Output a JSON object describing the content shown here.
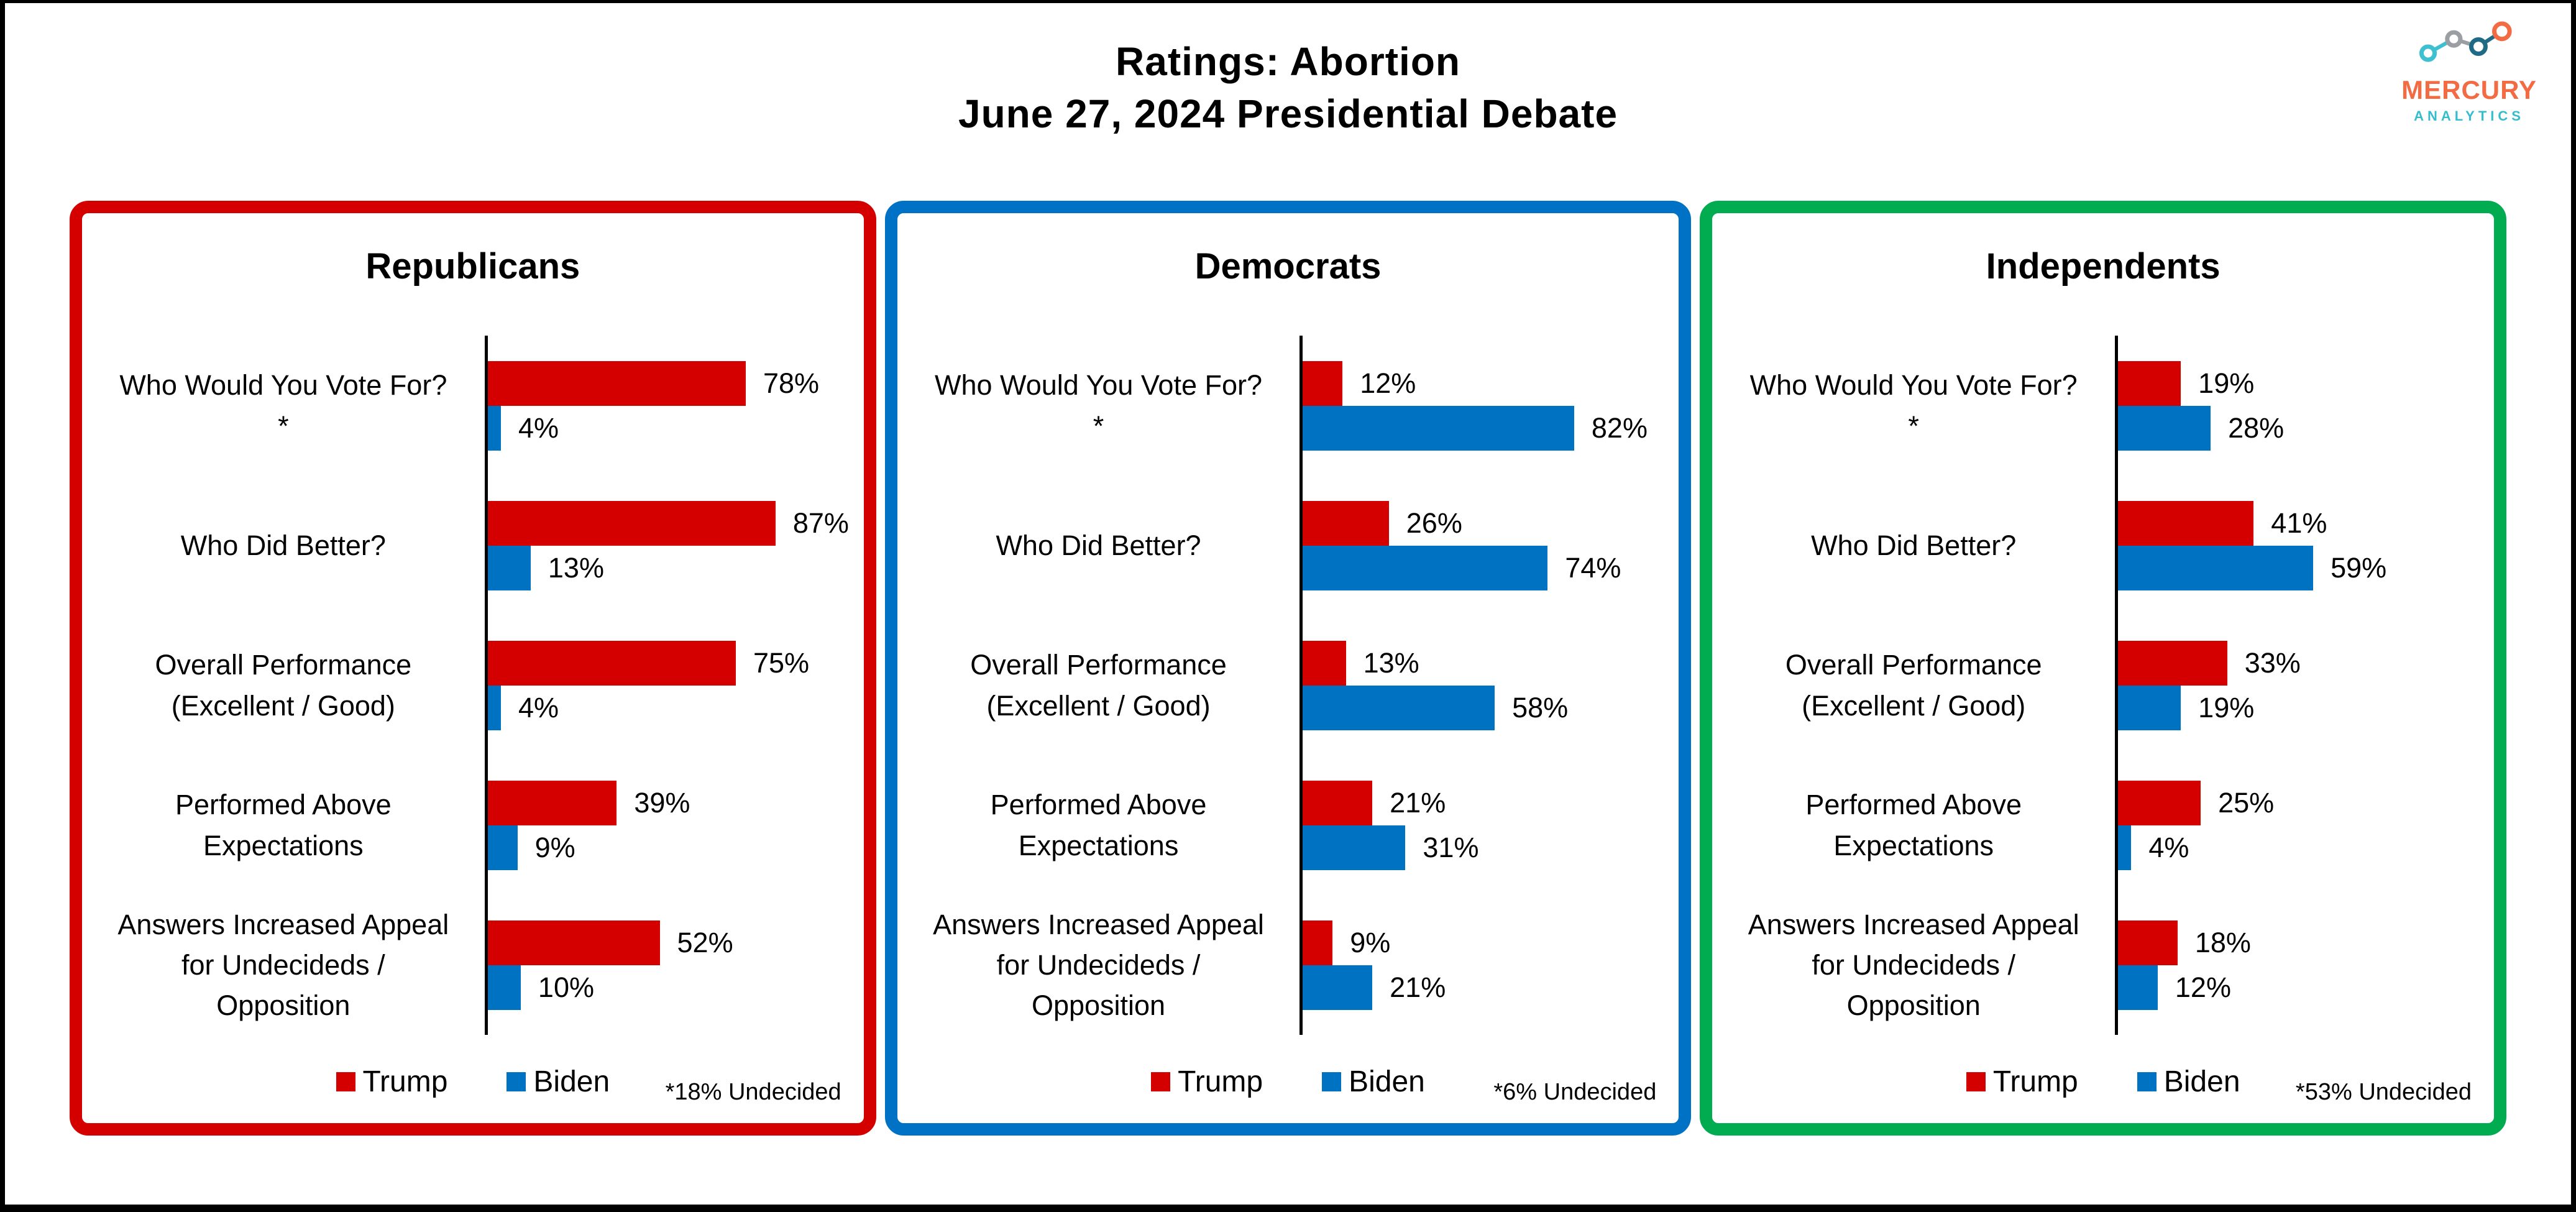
{
  "header": {
    "title_line1": "Ratings: Abortion",
    "title_line2": "June 27, 2024 Presidential Debate"
  },
  "logo": {
    "name": "MERCURY",
    "subname": "ANALYTICS",
    "name_color": "#F26B43",
    "subname_color": "#35BDCE",
    "mark_colors": {
      "teal": "#3EC0D1",
      "gray": "#9B9FA4",
      "dark_blue": "#1F6B86",
      "orange": "#F26B43"
    }
  },
  "colors": {
    "trump_bar": "#D40000",
    "biden_bar": "#0072C2",
    "republicans_border": "#D40000",
    "democrats_border": "#0072C6",
    "independents_border": "#00AC4F",
    "axis_line": "#000000"
  },
  "chart_data": [
    {
      "type": "bar",
      "orientation": "horizontal",
      "title": "Republicans",
      "border_color": "#D40000",
      "categories": [
        "Who Would You Vote For?*",
        "Who Did Better?",
        "Overall Performance (Excellent / Good)",
        "Performed Above Expectations",
        "Answers Increased Appeal for Undecideds / Opposition"
      ],
      "series": [
        {
          "name": "Trump",
          "color": "#D40000",
          "values": [
            78,
            87,
            75,
            39,
            52
          ]
        },
        {
          "name": "Biden",
          "color": "#0072C2",
          "values": [
            4,
            13,
            4,
            9,
            10
          ]
        }
      ],
      "value_suffix": "%",
      "xlim": [
        0,
        100
      ],
      "grid": false,
      "legend_position": "bottom",
      "note": "*18% Undecided"
    },
    {
      "type": "bar",
      "orientation": "horizontal",
      "title": "Democrats",
      "border_color": "#0072C6",
      "categories": [
        "Who Would You Vote For?*",
        "Who Did Better?",
        "Overall Performance (Excellent / Good)",
        "Performed Above Expectations",
        "Answers Increased Appeal for Undecideds / Opposition"
      ],
      "series": [
        {
          "name": "Trump",
          "color": "#D40000",
          "values": [
            12,
            26,
            13,
            21,
            9
          ]
        },
        {
          "name": "Biden",
          "color": "#0072C2",
          "values": [
            82,
            74,
            58,
            31,
            21
          ]
        }
      ],
      "value_suffix": "%",
      "xlim": [
        0,
        100
      ],
      "grid": false,
      "legend_position": "bottom",
      "note": "*6% Undecided"
    },
    {
      "type": "bar",
      "orientation": "horizontal",
      "title": "Independents",
      "border_color": "#00AC4F",
      "categories": [
        "Who Would You Vote For?*",
        "Who Did Better?",
        "Overall Performance (Excellent / Good)",
        "Performed Above Expectations",
        "Answers Increased Appeal for Undecideds / Opposition"
      ],
      "series": [
        {
          "name": "Trump",
          "color": "#D40000",
          "values": [
            19,
            41,
            33,
            25,
            18
          ]
        },
        {
          "name": "Biden",
          "color": "#0072C2",
          "values": [
            28,
            59,
            19,
            4,
            12
          ]
        }
      ],
      "value_suffix": "%",
      "xlim": [
        0,
        100
      ],
      "grid": false,
      "legend_position": "bottom",
      "note": "*53% Undecided"
    }
  ]
}
